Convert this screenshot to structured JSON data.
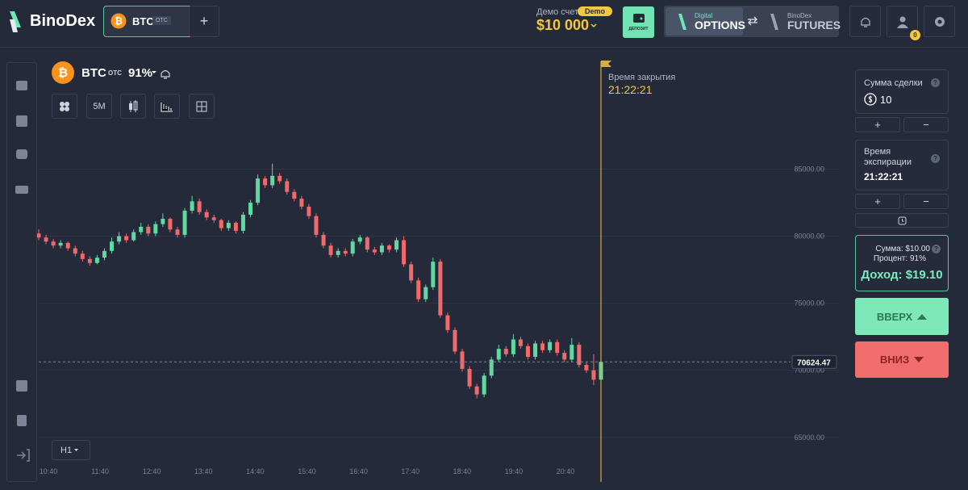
{
  "header": {
    "logo": "BinoDex",
    "asset_tab": {
      "symbol": "BTC",
      "tag": "OTC"
    },
    "add_tab": "+",
    "account": {
      "label": "Демо счет",
      "badge": "Demo",
      "balance": "$10 000"
    },
    "deposit": "ДЕПОЗИТ",
    "options": {
      "small": "Digital",
      "big": "OPTIONS"
    },
    "futures": {
      "small": "BinoDex",
      "big": "FUTURES"
    },
    "profile_badge": "0"
  },
  "chart_header": {
    "symbol": "BTC",
    "tag": "OTC",
    "payout": "91%",
    "timeframe": "5M",
    "interval": "H1"
  },
  "expiry_marker": {
    "label": "Время закрытия",
    "time": "21:22:21"
  },
  "chart_data": {
    "type": "candlestick",
    "ylim": [
      63300,
      94000
    ],
    "yticks": [
      {
        "value": 65000,
        "label": "65000.00"
      },
      {
        "value": 70000,
        "label": "70000.00"
      },
      {
        "value": 75000,
        "label": "75000.00"
      },
      {
        "value": 80000,
        "label": "80000.00"
      },
      {
        "value": 85000,
        "label": "85000.00"
      }
    ],
    "xticks": [
      "10:40",
      "11:40",
      "12:40",
      "13:40",
      "14:40",
      "15:40",
      "16:40",
      "17:40",
      "18:40",
      "19:40",
      "20:40"
    ],
    "candles": [
      [
        80200,
        80500,
        79700,
        79900
      ],
      [
        79900,
        80100,
        79400,
        79600
      ],
      [
        79600,
        79800,
        79100,
        79300
      ],
      [
        79300,
        79700,
        79100,
        79500
      ],
      [
        79500,
        79600,
        78900,
        79100
      ],
      [
        79100,
        79300,
        78500,
        78700
      ],
      [
        78700,
        78900,
        78100,
        78300
      ],
      [
        78300,
        78500,
        77800,
        78000
      ],
      [
        78000,
        78600,
        77900,
        78400
      ],
      [
        78400,
        79100,
        78200,
        78900
      ],
      [
        78900,
        79900,
        78700,
        79600
      ],
      [
        79600,
        80300,
        79400,
        80000
      ],
      [
        80000,
        80200,
        79500,
        79700
      ],
      [
        79700,
        80500,
        79600,
        80300
      ],
      [
        80300,
        81000,
        80100,
        80700
      ],
      [
        80700,
        80900,
        80000,
        80200
      ],
      [
        80200,
        81100,
        80000,
        80900
      ],
      [
        80900,
        81700,
        80700,
        81300
      ],
      [
        81300,
        81400,
        80300,
        80500
      ],
      [
        80500,
        80700,
        79900,
        80100
      ],
      [
        80100,
        82100,
        79900,
        81900
      ],
      [
        81900,
        83000,
        81700,
        82600
      ],
      [
        82600,
        82800,
        81600,
        81800
      ],
      [
        81800,
        82000,
        81200,
        81400
      ],
      [
        81400,
        81600,
        81000,
        81200
      ],
      [
        81200,
        81300,
        80400,
        80600
      ],
      [
        80600,
        81200,
        80400,
        81000
      ],
      [
        81000,
        81100,
        80200,
        80400
      ],
      [
        80400,
        81800,
        80200,
        81600
      ],
      [
        81600,
        82700,
        81400,
        82500
      ],
      [
        82500,
        84600,
        82300,
        84300
      ],
      [
        84300,
        84500,
        83600,
        83800
      ],
      [
        83800,
        85400,
        83600,
        84500
      ],
      [
        84500,
        84700,
        83900,
        84100
      ],
      [
        84100,
        84300,
        83100,
        83300
      ],
      [
        83300,
        83500,
        82600,
        82800
      ],
      [
        82800,
        83000,
        82000,
        82200
      ],
      [
        82200,
        82400,
        81300,
        81500
      ],
      [
        81500,
        81700,
        79900,
        80100
      ],
      [
        80100,
        80300,
        79100,
        79300
      ],
      [
        79300,
        79500,
        78400,
        78600
      ],
      [
        78600,
        79100,
        78400,
        78900
      ],
      [
        78900,
        79100,
        78500,
        78700
      ],
      [
        78700,
        79800,
        78500,
        79600
      ],
      [
        79600,
        80100,
        79400,
        79900
      ],
      [
        79900,
        80000,
        78800,
        79000
      ],
      [
        79000,
        79200,
        78600,
        78800
      ],
      [
        78800,
        79500,
        78600,
        79300
      ],
      [
        79300,
        79400,
        78800,
        79000
      ],
      [
        79000,
        79900,
        78800,
        79700
      ],
      [
        79700,
        80000,
        77700,
        77900
      ],
      [
        77900,
        78100,
        76500,
        76700
      ],
      [
        76700,
        76900,
        75100,
        75300
      ],
      [
        75300,
        76400,
        75100,
        76200
      ],
      [
        76200,
        78400,
        76000,
        78100
      ],
      [
        78100,
        78300,
        73900,
        74100
      ],
      [
        74100,
        74300,
        72800,
        73000
      ],
      [
        73000,
        73200,
        71200,
        71400
      ],
      [
        71400,
        71600,
        69900,
        70100
      ],
      [
        70100,
        70300,
        68600,
        68800
      ],
      [
        68800,
        69000,
        67900,
        68200
      ],
      [
        68200,
        69800,
        68000,
        69600
      ],
      [
        69600,
        71000,
        69400,
        70800
      ],
      [
        70800,
        71900,
        70600,
        71600
      ],
      [
        71600,
        71800,
        71000,
        71200
      ],
      [
        71200,
        72700,
        71000,
        72300
      ],
      [
        72300,
        72500,
        71600,
        71800
      ],
      [
        71800,
        72000,
        70800,
        71000
      ],
      [
        71000,
        72200,
        70800,
        72000
      ],
      [
        72000,
        72200,
        71300,
        71500
      ],
      [
        71500,
        72300,
        71300,
        72100
      ],
      [
        72100,
        72300,
        71100,
        71300
      ],
      [
        71300,
        71500,
        70600,
        70800
      ],
      [
        70800,
        72400,
        70600,
        71900
      ],
      [
        71900,
        72100,
        70200,
        70400
      ],
      [
        70400,
        70600,
        69800,
        70000
      ],
      [
        70000,
        71200,
        68900,
        69300
      ],
      [
        69300,
        70800,
        69100,
        70624.47
      ]
    ]
  },
  "trade_panel": {
    "amount_label": "Сумма сделки",
    "amount": "10",
    "help": "?",
    "plus": "+",
    "minus": "−",
    "expiry_label": "Время экспирации",
    "expiry_time": "21:22:21",
    "summary": {
      "sum": "Сумма: $10.00",
      "percent": "Процент: 91%",
      "income": "Доход: $19.10"
    },
    "up": "ВВЕРХ",
    "down": "ВНИЗ"
  }
}
